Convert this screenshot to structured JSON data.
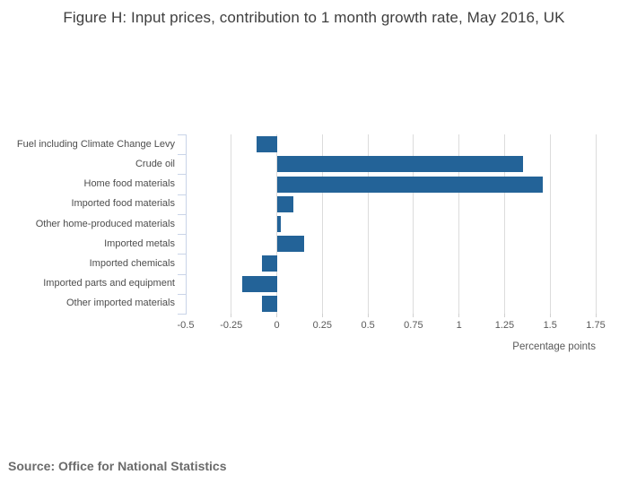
{
  "title": "Figure H: Input prices, contribution to 1 month growth rate, May 2016, UK",
  "source": "Source: Office for National Statistics",
  "chart_data": {
    "type": "bar",
    "orientation": "horizontal",
    "title": "Figure H: Input prices, contribution to 1 month growth rate, May 2016, UK",
    "categories": [
      "Fuel including Climate Change Levy",
      "Crude oil",
      "Home food materials",
      "Imported food materials",
      "Other home-produced materials",
      "Imported metals",
      "Imported chemicals",
      "Imported parts and equipment",
      "Other imported materials"
    ],
    "values": [
      -0.11,
      1.35,
      1.46,
      0.09,
      0.02,
      0.15,
      -0.08,
      -0.19,
      -0.08
    ],
    "xlabel": "Percentage points",
    "ylabel": "",
    "xlim": [
      -0.5,
      1.75
    ],
    "xticks": [
      -0.5,
      -0.25,
      0,
      0.25,
      0.5,
      0.75,
      1,
      1.25,
      1.5,
      1.75
    ],
    "xtick_labels": [
      "-0.5",
      "-0.25",
      "0",
      "0.25",
      "0.5",
      "0.75",
      "1",
      "1.25",
      "1.5",
      "1.75"
    ],
    "grid": true,
    "legend_position": "none",
    "bar_color": "#236398",
    "grid_color": "#dcdcdc",
    "axis_color": "#c9d4e8",
    "label_color": "#4d4d4d",
    "tick_label_color": "#595959"
  }
}
